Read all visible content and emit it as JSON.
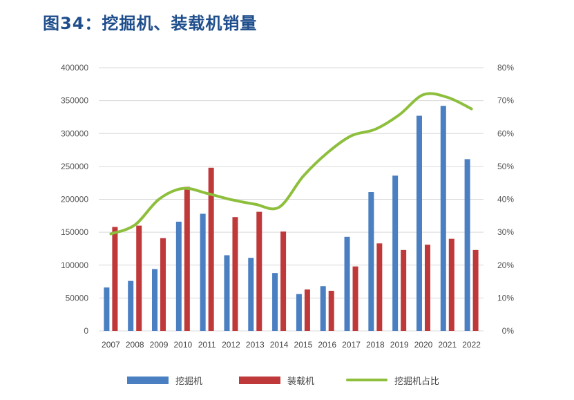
{
  "title": "图34：挖掘机、装载机销量",
  "colors": {
    "title": "#1f4e8c",
    "excavator": "#4a7fc1",
    "loader": "#c0393a",
    "share": "#8dbf3c",
    "grid": "#d9d9d9"
  },
  "chart_data": {
    "type": "bar",
    "categories": [
      "2007",
      "2008",
      "2009",
      "2010",
      "2011",
      "2012",
      "2013",
      "2014",
      "2015",
      "2016",
      "2017",
      "2018",
      "2019",
      "2020",
      "2021",
      "2022"
    ],
    "series": [
      {
        "name": "挖掘机",
        "type": "bar",
        "axis": "left",
        "values": [
          66000,
          76000,
          94000,
          166000,
          178000,
          115000,
          111000,
          88000,
          56000,
          68000,
          143000,
          211000,
          236000,
          327000,
          342000,
          261000
        ]
      },
      {
        "name": "装载机",
        "type": "bar",
        "axis": "left",
        "values": [
          158000,
          160000,
          141000,
          219000,
          248000,
          173000,
          181000,
          151000,
          63000,
          61000,
          98000,
          133000,
          123000,
          131000,
          140000,
          123000
        ]
      },
      {
        "name": "挖掘机占比",
        "type": "line",
        "axis": "right",
        "values": [
          29.5,
          32.2,
          40.0,
          43.3,
          41.8,
          39.9,
          38.5,
          37.6,
          47.0,
          54.1,
          59.3,
          61.3,
          65.7,
          71.8,
          71.0,
          67.5
        ]
      }
    ],
    "ylim_left": [
      0,
      400000
    ],
    "yticks_left": [
      "0",
      "50000",
      "100000",
      "150000",
      "200000",
      "250000",
      "300000",
      "350000",
      "400000"
    ],
    "ylim_right": [
      0,
      80
    ],
    "yticks_right": [
      "0%",
      "10%",
      "20%",
      "30%",
      "40%",
      "50%",
      "60%",
      "70%",
      "80%"
    ],
    "grid": true,
    "legend_position": "bottom"
  }
}
